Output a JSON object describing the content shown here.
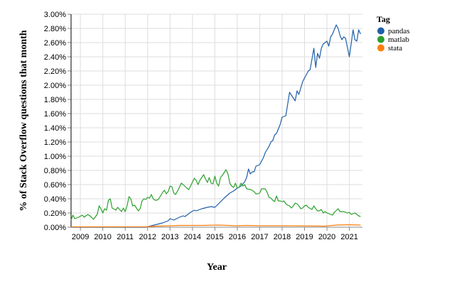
{
  "chart_data": {
    "type": "line",
    "xlabel": "Year",
    "ylabel": "% of Stack Overflow questions that month",
    "ylim": [
      0,
      3.0
    ],
    "y_ticks": [
      "0.00%",
      "0.20%",
      "0.40%",
      "0.60%",
      "0.80%",
      "1.00%",
      "1.20%",
      "1.40%",
      "1.60%",
      "1.80%",
      "2.00%",
      "2.20%",
      "2.40%",
      "2.60%",
      "2.80%",
      "3.00%"
    ],
    "x_ticks": [
      "2009",
      "2010",
      "2011",
      "2012",
      "2013",
      "2014",
      "2015",
      "2016",
      "2017",
      "2018",
      "2019",
      "2020",
      "2021"
    ],
    "xlim": [
      "2008-08",
      "2021-08"
    ],
    "grid": true,
    "legend": {
      "title": "Tag",
      "placement": "right"
    },
    "series": [
      {
        "name": "pandas",
        "color": "#1f5fa8",
        "points": [
          [
            "2008-08",
            0.0
          ],
          [
            "2011-12",
            0.0
          ],
          [
            "2012-03",
            0.02
          ],
          [
            "2012-06",
            0.04
          ],
          [
            "2012-09",
            0.06
          ],
          [
            "2012-12",
            0.09
          ],
          [
            "2013-01",
            0.12
          ],
          [
            "2013-03",
            0.1
          ],
          [
            "2013-06",
            0.14
          ],
          [
            "2013-08",
            0.16
          ],
          [
            "2013-09",
            0.15
          ],
          [
            "2013-12",
            0.21
          ],
          [
            "2014-02",
            0.24
          ],
          [
            "2014-03",
            0.23
          ],
          [
            "2014-06",
            0.26
          ],
          [
            "2014-09",
            0.28
          ],
          [
            "2014-11",
            0.29
          ],
          [
            "2015-01",
            0.28
          ],
          [
            "2015-03",
            0.33
          ],
          [
            "2015-06",
            0.41
          ],
          [
            "2015-09",
            0.48
          ],
          [
            "2015-11",
            0.51
          ],
          [
            "2016-01",
            0.55
          ],
          [
            "2016-03",
            0.58
          ],
          [
            "2016-05",
            0.64
          ],
          [
            "2016-06",
            0.7
          ],
          [
            "2016-07",
            0.82
          ],
          [
            "2016-08",
            0.75
          ],
          [
            "2016-09",
            0.78
          ],
          [
            "2016-10",
            0.78
          ],
          [
            "2016-11",
            0.86
          ],
          [
            "2017-01",
            0.88
          ],
          [
            "2017-03",
            0.98
          ],
          [
            "2017-04",
            1.05
          ],
          [
            "2017-06",
            1.14
          ],
          [
            "2017-07",
            1.2
          ],
          [
            "2017-08",
            1.22
          ],
          [
            "2017-09",
            1.3
          ],
          [
            "2017-10",
            1.32
          ],
          [
            "2017-12",
            1.45
          ],
          [
            "2018-01",
            1.55
          ],
          [
            "2018-03",
            1.57
          ],
          [
            "2018-05",
            1.9
          ],
          [
            "2018-06",
            1.86
          ],
          [
            "2018-08",
            1.78
          ],
          [
            "2018-09",
            1.92
          ],
          [
            "2018-10",
            1.87
          ],
          [
            "2018-12",
            2.05
          ],
          [
            "2019-01",
            2.1
          ],
          [
            "2019-03",
            2.2
          ],
          [
            "2019-04",
            2.22
          ],
          [
            "2019-06",
            2.52
          ],
          [
            "2019-07",
            2.25
          ],
          [
            "2019-08",
            2.45
          ],
          [
            "2019-09",
            2.38
          ],
          [
            "2019-10",
            2.52
          ],
          [
            "2019-11",
            2.58
          ],
          [
            "2020-01",
            2.62
          ],
          [
            "2020-02",
            2.55
          ],
          [
            "2020-03",
            2.68
          ],
          [
            "2020-04",
            2.72
          ],
          [
            "2020-06",
            2.85
          ],
          [
            "2020-07",
            2.8
          ],
          [
            "2020-08",
            2.7
          ],
          [
            "2020-09",
            2.64
          ],
          [
            "2020-10",
            2.68
          ],
          [
            "2020-11",
            2.66
          ],
          [
            "2021-01",
            2.4
          ],
          [
            "2021-03",
            2.78
          ],
          [
            "2021-04",
            2.64
          ],
          [
            "2021-05",
            2.62
          ],
          [
            "2021-06",
            2.78
          ],
          [
            "2021-07",
            2.72
          ]
        ]
      },
      {
        "name": "matlab",
        "color": "#2ca02c",
        "points": [
          [
            "2008-08",
            0.1
          ],
          [
            "2008-09",
            0.17
          ],
          [
            "2008-10",
            0.12
          ],
          [
            "2008-12",
            0.14
          ],
          [
            "2009-02",
            0.17
          ],
          [
            "2009-03",
            0.14
          ],
          [
            "2009-05",
            0.18
          ],
          [
            "2009-07",
            0.14
          ],
          [
            "2009-08",
            0.11
          ],
          [
            "2009-10",
            0.18
          ],
          [
            "2009-11",
            0.3
          ],
          [
            "2009-12",
            0.26
          ],
          [
            "2010-01",
            0.2
          ],
          [
            "2010-02",
            0.26
          ],
          [
            "2010-03",
            0.24
          ],
          [
            "2010-04",
            0.38
          ],
          [
            "2010-05",
            0.4
          ],
          [
            "2010-06",
            0.27
          ],
          [
            "2010-08",
            0.24
          ],
          [
            "2010-09",
            0.28
          ],
          [
            "2010-10",
            0.25
          ],
          [
            "2010-11",
            0.22
          ],
          [
            "2010-12",
            0.27
          ],
          [
            "2011-01",
            0.22
          ],
          [
            "2011-02",
            0.3
          ],
          [
            "2011-03",
            0.43
          ],
          [
            "2011-04",
            0.4
          ],
          [
            "2011-05",
            0.3
          ],
          [
            "2011-06",
            0.31
          ],
          [
            "2011-08",
            0.23
          ],
          [
            "2011-09",
            0.26
          ],
          [
            "2011-10",
            0.37
          ],
          [
            "2011-11",
            0.4
          ],
          [
            "2011-12",
            0.39
          ],
          [
            "2012-01",
            0.42
          ],
          [
            "2012-02",
            0.41
          ],
          [
            "2012-03",
            0.46
          ],
          [
            "2012-04",
            0.4
          ],
          [
            "2012-05",
            0.38
          ],
          [
            "2012-06",
            0.38
          ],
          [
            "2012-07",
            0.4
          ],
          [
            "2012-09",
            0.49
          ],
          [
            "2012-10",
            0.52
          ],
          [
            "2012-11",
            0.47
          ],
          [
            "2012-12",
            0.5
          ],
          [
            "2013-01",
            0.58
          ],
          [
            "2013-02",
            0.57
          ],
          [
            "2013-03",
            0.48
          ],
          [
            "2013-04",
            0.46
          ],
          [
            "2013-06",
            0.56
          ],
          [
            "2013-07",
            0.62
          ],
          [
            "2013-08",
            0.6
          ],
          [
            "2013-10",
            0.55
          ],
          [
            "2013-11",
            0.53
          ],
          [
            "2013-12",
            0.58
          ],
          [
            "2014-02",
            0.69
          ],
          [
            "2014-03",
            0.66
          ],
          [
            "2014-04",
            0.6
          ],
          [
            "2014-05",
            0.66
          ],
          [
            "2014-07",
            0.74
          ],
          [
            "2014-08",
            0.68
          ],
          [
            "2014-09",
            0.63
          ],
          [
            "2014-10",
            0.7
          ],
          [
            "2014-11",
            0.62
          ],
          [
            "2014-12",
            0.61
          ],
          [
            "2015-01",
            0.72
          ],
          [
            "2015-02",
            0.62
          ],
          [
            "2015-03",
            0.58
          ],
          [
            "2015-04",
            0.7
          ],
          [
            "2015-05",
            0.73
          ],
          [
            "2015-07",
            0.81
          ],
          [
            "2015-08",
            0.75
          ],
          [
            "2015-09",
            0.62
          ],
          [
            "2015-10",
            0.58
          ],
          [
            "2015-11",
            0.56
          ],
          [
            "2015-12",
            0.62
          ],
          [
            "2016-01",
            0.55
          ],
          [
            "2016-02",
            0.56
          ],
          [
            "2016-03",
            0.62
          ],
          [
            "2016-04",
            0.58
          ],
          [
            "2016-05",
            0.6
          ],
          [
            "2016-06",
            0.54
          ],
          [
            "2016-08",
            0.53
          ],
          [
            "2016-09",
            0.52
          ],
          [
            "2016-10",
            0.5
          ],
          [
            "2016-11",
            0.47
          ],
          [
            "2016-12",
            0.47
          ],
          [
            "2017-01",
            0.48
          ],
          [
            "2017-02",
            0.54
          ],
          [
            "2017-04",
            0.54
          ],
          [
            "2017-05",
            0.49
          ],
          [
            "2017-06",
            0.42
          ],
          [
            "2017-07",
            0.41
          ],
          [
            "2017-08",
            0.38
          ],
          [
            "2017-09",
            0.36
          ],
          [
            "2017-10",
            0.44
          ],
          [
            "2017-11",
            0.37
          ],
          [
            "2017-12",
            0.37
          ],
          [
            "2018-01",
            0.36
          ],
          [
            "2018-02",
            0.37
          ],
          [
            "2018-03",
            0.33
          ],
          [
            "2018-04",
            0.31
          ],
          [
            "2018-05",
            0.3
          ],
          [
            "2018-06",
            0.27
          ],
          [
            "2018-07",
            0.3
          ],
          [
            "2018-08",
            0.34
          ],
          [
            "2018-09",
            0.33
          ],
          [
            "2018-10",
            0.3
          ],
          [
            "2018-11",
            0.26
          ],
          [
            "2018-12",
            0.27
          ],
          [
            "2019-01",
            0.3
          ],
          [
            "2019-02",
            0.31
          ],
          [
            "2019-03",
            0.28
          ],
          [
            "2019-05",
            0.25
          ],
          [
            "2019-06",
            0.3
          ],
          [
            "2019-07",
            0.26
          ],
          [
            "2019-08",
            0.23
          ],
          [
            "2019-09",
            0.23
          ],
          [
            "2019-10",
            0.25
          ],
          [
            "2019-11",
            0.2
          ],
          [
            "2019-12",
            0.22
          ],
          [
            "2020-01",
            0.2
          ],
          [
            "2020-02",
            0.19
          ],
          [
            "2020-04",
            0.17
          ],
          [
            "2020-05",
            0.21
          ],
          [
            "2020-07",
            0.26
          ],
          [
            "2020-08",
            0.22
          ],
          [
            "2020-10",
            0.22
          ],
          [
            "2020-12",
            0.2
          ],
          [
            "2021-01",
            0.21
          ],
          [
            "2021-02",
            0.18
          ],
          [
            "2021-04",
            0.2
          ],
          [
            "2021-05",
            0.18
          ],
          [
            "2021-06",
            0.16
          ],
          [
            "2021-07",
            0.15
          ]
        ]
      },
      {
        "name": "stata",
        "color": "#ff7f0e",
        "points": [
          [
            "2008-08",
            0.005
          ],
          [
            "2011-12",
            0.006
          ],
          [
            "2012-06",
            0.015
          ],
          [
            "2013-01",
            0.02
          ],
          [
            "2013-06",
            0.025
          ],
          [
            "2014-06",
            0.025
          ],
          [
            "2015-03",
            0.03
          ],
          [
            "2016-01",
            0.02
          ],
          [
            "2016-06",
            0.025
          ],
          [
            "2017-01",
            0.02
          ],
          [
            "2018-06",
            0.02
          ],
          [
            "2019-12",
            0.015
          ],
          [
            "2020-06",
            0.03
          ],
          [
            "2021-01",
            0.035
          ],
          [
            "2021-07",
            0.03
          ]
        ]
      }
    ]
  }
}
